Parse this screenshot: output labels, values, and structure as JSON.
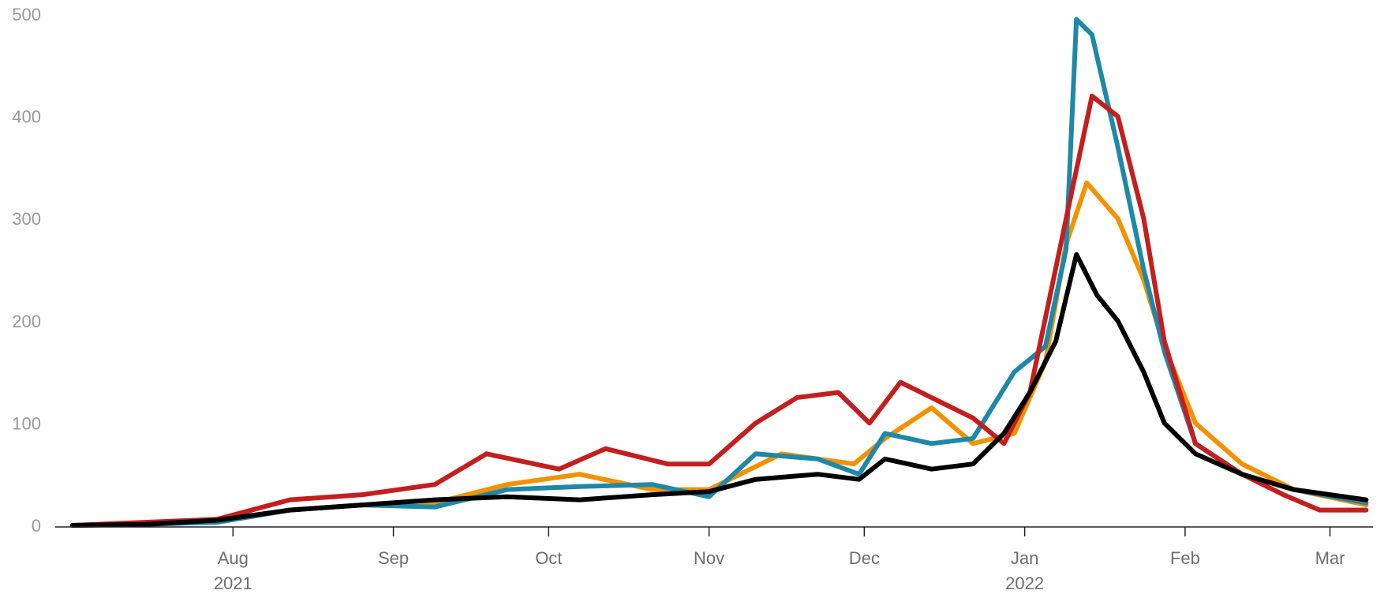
{
  "chart_data": {
    "type": "line",
    "title": "",
    "xlabel": "",
    "ylabel": "",
    "ylim": [
      0,
      500
    ],
    "xlim": [
      "2021-07-01",
      "2022-03-09"
    ],
    "grid": false,
    "legend": "none",
    "y_ticks": [
      {
        "value": 0,
        "label": "0"
      },
      {
        "value": 100,
        "label": "100"
      },
      {
        "value": 200,
        "label": "200"
      },
      {
        "value": 300,
        "label": "300"
      },
      {
        "value": 400,
        "label": "400"
      },
      {
        "value": 500,
        "label": "500"
      }
    ],
    "x_ticks": [
      {
        "date": "2021-08-01",
        "label": "Aug",
        "sublabel": "2021"
      },
      {
        "date": "2021-09-01",
        "label": "Sep",
        "sublabel": ""
      },
      {
        "date": "2021-10-01",
        "label": "Oct",
        "sublabel": ""
      },
      {
        "date": "2021-11-01",
        "label": "Nov",
        "sublabel": ""
      },
      {
        "date": "2021-12-01",
        "label": "Dec",
        "sublabel": ""
      },
      {
        "date": "2022-01-01",
        "label": "Jan",
        "sublabel": "2022"
      },
      {
        "date": "2022-02-01",
        "label": "Feb",
        "sublabel": ""
      },
      {
        "date": "2022-03-01",
        "label": "Mar",
        "sublabel": ""
      }
    ],
    "series": [
      {
        "color": "#f39200",
        "x": [
          "2021-07-01",
          "2021-07-15",
          "2021-07-29",
          "2021-08-12",
          "2021-08-26",
          "2021-09-09",
          "2021-09-23",
          "2021-10-07",
          "2021-10-21",
          "2021-11-01",
          "2021-11-15",
          "2021-11-29",
          "2021-12-05",
          "2021-12-14",
          "2021-12-22",
          "2021-12-30",
          "2022-01-05",
          "2022-01-09",
          "2022-01-13",
          "2022-01-19",
          "2022-01-24",
          "2022-01-28",
          "2022-02-03",
          "2022-02-12",
          "2022-02-22",
          "2022-03-08"
        ],
        "y": [
          0,
          2,
          3,
          15,
          20,
          22,
          40,
          50,
          35,
          35,
          70,
          60,
          85,
          115,
          80,
          90,
          160,
          275,
          335,
          300,
          240,
          175,
          100,
          60,
          35,
          20
        ]
      },
      {
        "color": "#1e88a8",
        "x": [
          "2021-07-01",
          "2021-07-15",
          "2021-07-29",
          "2021-08-12",
          "2021-08-26",
          "2021-09-09",
          "2021-09-23",
          "2021-10-07",
          "2021-10-21",
          "2021-11-01",
          "2021-11-10",
          "2021-11-22",
          "2021-11-30",
          "2021-12-05",
          "2021-12-14",
          "2021-12-22",
          "2021-12-30",
          "2022-01-05",
          "2022-01-09",
          "2022-01-11",
          "2022-01-14",
          "2022-01-19",
          "2022-01-24",
          "2022-01-28",
          "2022-02-03",
          "2022-02-12",
          "2022-02-22",
          "2022-03-08"
        ],
        "y": [
          0,
          1,
          3,
          15,
          20,
          18,
          35,
          38,
          40,
          28,
          70,
          65,
          50,
          90,
          80,
          85,
          150,
          175,
          270,
          495,
          480,
          370,
          250,
          170,
          80,
          50,
          35,
          22
        ]
      },
      {
        "color": "#c41e1e",
        "x": [
          "2021-07-01",
          "2021-07-15",
          "2021-07-29",
          "2021-08-12",
          "2021-08-26",
          "2021-09-09",
          "2021-09-19",
          "2021-10-03",
          "2021-10-12",
          "2021-10-24",
          "2021-11-01",
          "2021-11-10",
          "2021-11-18",
          "2021-11-26",
          "2021-12-02",
          "2021-12-08",
          "2021-12-16",
          "2021-12-22",
          "2021-12-28",
          "2022-01-02",
          "2022-01-09",
          "2022-01-14",
          "2022-01-19",
          "2022-01-24",
          "2022-01-28",
          "2022-02-03",
          "2022-02-12",
          "2022-02-20",
          "2022-02-27",
          "2022-03-08"
        ],
        "y": [
          0,
          3,
          6,
          25,
          30,
          40,
          70,
          55,
          75,
          60,
          60,
          100,
          125,
          130,
          100,
          140,
          120,
          105,
          80,
          130,
          300,
          420,
          400,
          300,
          180,
          80,
          50,
          30,
          15,
          15
        ]
      },
      {
        "color": "#000000",
        "x": [
          "2021-07-01",
          "2021-07-15",
          "2021-07-29",
          "2021-08-12",
          "2021-08-26",
          "2021-09-09",
          "2021-09-23",
          "2021-10-07",
          "2021-10-21",
          "2021-11-01",
          "2021-11-10",
          "2021-11-22",
          "2021-11-30",
          "2021-12-05",
          "2021-12-14",
          "2021-12-22",
          "2021-12-28",
          "2022-01-02",
          "2022-01-07",
          "2022-01-11",
          "2022-01-15",
          "2022-01-19",
          "2022-01-24",
          "2022-01-28",
          "2022-02-03",
          "2022-02-12",
          "2022-02-22",
          "2022-03-08"
        ],
        "y": [
          0,
          1,
          5,
          15,
          20,
          25,
          28,
          25,
          30,
          33,
          45,
          50,
          45,
          65,
          55,
          60,
          90,
          130,
          180,
          265,
          225,
          200,
          150,
          100,
          70,
          50,
          35,
          25
        ]
      }
    ]
  }
}
